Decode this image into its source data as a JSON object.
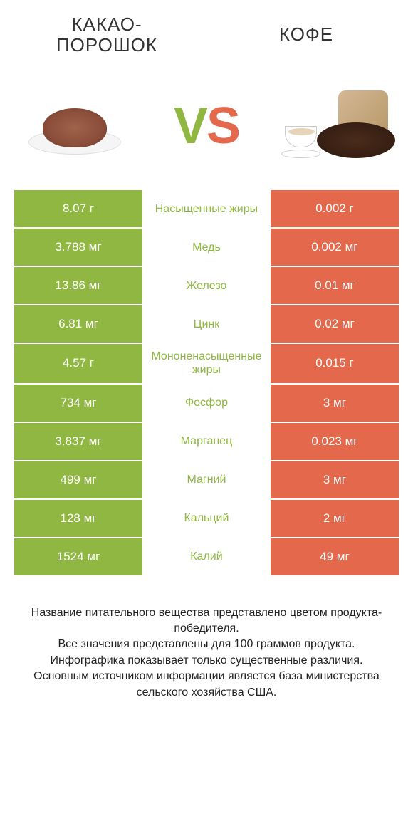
{
  "header": {
    "left_title": "КАКАО-ПОРОШОК",
    "right_title": "КОФЕ",
    "vs_v": "V",
    "vs_s": "S"
  },
  "colors": {
    "green": "#8fb741",
    "orange": "#e4694c",
    "label_green": "#8fb741",
    "label_orange": "#e4694c",
    "text": "#333333",
    "background": "#ffffff"
  },
  "rows": [
    {
      "left": "8.07 г",
      "label": "Насыщенные жиры",
      "right": "0.002 г",
      "winner": "left"
    },
    {
      "left": "3.788 мг",
      "label": "Медь",
      "right": "0.002 мг",
      "winner": "left"
    },
    {
      "left": "13.86 мг",
      "label": "Железо",
      "right": "0.01 мг",
      "winner": "left"
    },
    {
      "left": "6.81 мг",
      "label": "Цинк",
      "right": "0.02 мг",
      "winner": "left"
    },
    {
      "left": "4.57 г",
      "label": "Мононенасыщенные жиры",
      "right": "0.015 г",
      "winner": "left"
    },
    {
      "left": "734 мг",
      "label": "Фосфор",
      "right": "3 мг",
      "winner": "left"
    },
    {
      "left": "3.837 мг",
      "label": "Марганец",
      "right": "0.023 мг",
      "winner": "left"
    },
    {
      "left": "499 мг",
      "label": "Магний",
      "right": "3 мг",
      "winner": "left"
    },
    {
      "left": "128 мг",
      "label": "Кальций",
      "right": "2 мг",
      "winner": "left"
    },
    {
      "left": "1524 мг",
      "label": "Калий",
      "right": "49 мг",
      "winner": "left"
    }
  ],
  "footer": {
    "line1": "Название питательного вещества представлено цветом продукта-победителя.",
    "line2": "Все значения представлены для 100 граммов продукта.",
    "line3": "Инфографика показывает только существенные различия.",
    "line4": "Основным источником информации является база министерства сельского хозяйства США."
  }
}
